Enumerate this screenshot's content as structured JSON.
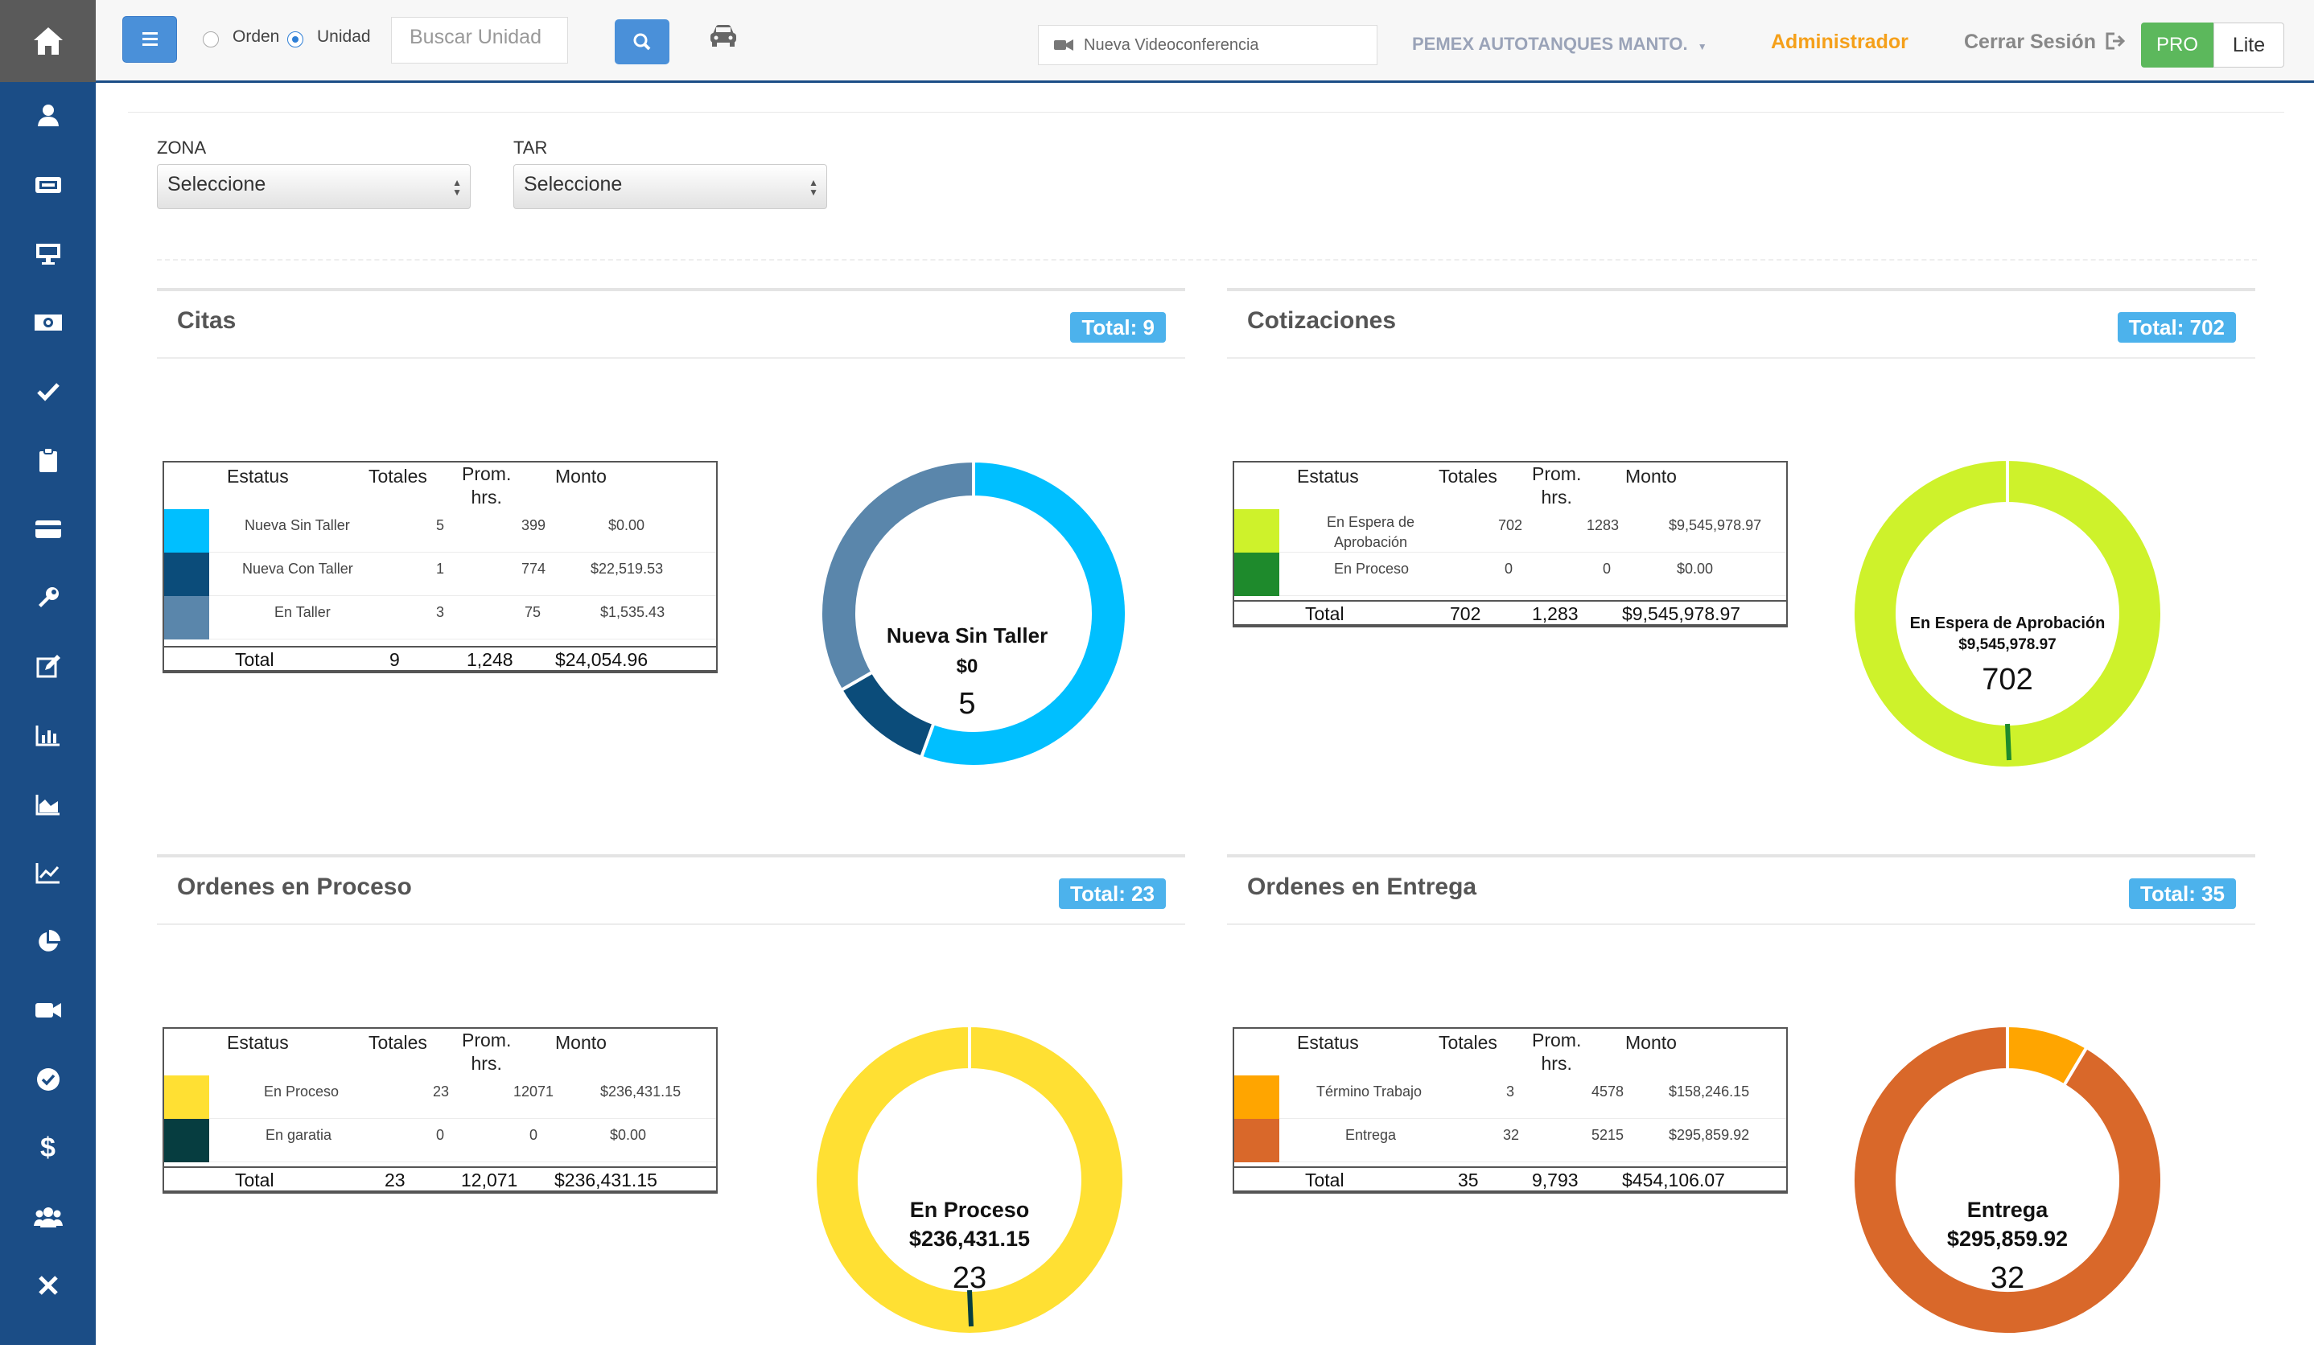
{
  "nav": {
    "items": [
      "home-icon",
      "user-icon",
      "id-card-icon",
      "display-icon",
      "money-icon",
      "check-icon",
      "clipboard-icon",
      "credit-card-icon",
      "wrench-icon",
      "edit-icon",
      "bar-chart-icon",
      "area-chart-icon",
      "line-chart-icon",
      "pie-chart-icon",
      "video-icon",
      "check-circle-icon",
      "dollar-icon",
      "users-icon",
      "close-icon"
    ]
  },
  "topbar": {
    "radio_orden": "Orden",
    "radio_unidad": "Unidad",
    "search_placeholder": "Buscar Unidad",
    "videoconf": "Nueva Videoconferencia",
    "company": "PEMEX AUTOTANQUES MANTO.",
    "admin": "Administrador",
    "logout": "Cerrar Sesión",
    "pro": "PRO",
    "lite": "Lite"
  },
  "filters": {
    "zona_label": "ZONA",
    "zona_value": "Seleccione",
    "tar_label": "TAR",
    "tar_value": "Seleccione"
  },
  "headers": {
    "estatus": "Estatus",
    "totales": "Totales",
    "prom1": "Prom.",
    "prom2": "hrs.",
    "monto": "Monto",
    "total": "Total"
  },
  "panels": {
    "citas": {
      "title": "Citas",
      "badge": "Total: 9",
      "rows": [
        {
          "status": "Nueva Sin Taller",
          "status2": "",
          "totales": "5",
          "prom": "399",
          "monto": "$0.00",
          "color": "#00bfff"
        },
        {
          "status": "Nueva Con Taller",
          "status2": "",
          "totales": "1",
          "prom": "774",
          "monto": "$22,519.53",
          "color": "#0b4c7a"
        },
        {
          "status": "En Taller",
          "status2": "",
          "totales": "3",
          "prom": "75",
          "monto": "$1,535.43",
          "color": "#5a86ab"
        }
      ],
      "total": {
        "totales": "9",
        "prom": "1,248",
        "monto": "$24,054.96"
      },
      "center": {
        "line1": "Nueva Sin Taller",
        "line2": "$0",
        "line3": "5"
      }
    },
    "cotizaciones": {
      "title": "Cotizaciones",
      "badge": "Total: 702",
      "rows": [
        {
          "status": "En Espera de",
          "status2": "Aprobación",
          "totales": "702",
          "prom": "1283",
          "monto": "$9,545,978.97",
          "color": "#cef22b"
        },
        {
          "status": "En Proceso",
          "status2": "",
          "totales": "0",
          "prom": "0",
          "monto": "$0.00",
          "color": "#1e8a2c"
        }
      ],
      "total": {
        "totales": "702",
        "prom": "1,283",
        "monto": "$9,545,978.97"
      },
      "center": {
        "line1": "En Espera de Aprobación",
        "line2": "$9,545,978.97",
        "line3": "702"
      }
    },
    "proceso": {
      "title": "Ordenes en Proceso",
      "badge": "Total: 23",
      "rows": [
        {
          "status": "En Proceso",
          "status2": "",
          "totales": "23",
          "prom": "12071",
          "monto": "$236,431.15",
          "color": "#ffe033"
        },
        {
          "status": "En garatia",
          "status2": "",
          "totales": "0",
          "prom": "0",
          "monto": "$0.00",
          "color": "#063d40"
        }
      ],
      "total": {
        "totales": "23",
        "prom": "12,071",
        "monto": "$236,431.15"
      },
      "center": {
        "line1": "En Proceso",
        "line2": "$236,431.15",
        "line3": "23"
      }
    },
    "entrega": {
      "title": "Ordenes en Entrega",
      "badge": "Total: 35",
      "rows": [
        {
          "status": "Término Trabajo",
          "status2": "",
          "totales": "3",
          "prom": "4578",
          "monto": "$158,246.15",
          "color": "#ffa500"
        },
        {
          "status": "Entrega",
          "status2": "",
          "totales": "32",
          "prom": "5215",
          "monto": "$295,859.92",
          "color": "#d9682a"
        }
      ],
      "total": {
        "totales": "35",
        "prom": "9,793",
        "monto": "$454,106.07"
      },
      "center": {
        "line1": "Entrega",
        "line2": "$295,859.92",
        "line3": "32"
      }
    }
  },
  "chart_data": [
    {
      "type": "pie",
      "variant": "donut",
      "series": [
        {
          "name": "Nueva Sin Taller",
          "value": 5,
          "color": "#00bfff"
        },
        {
          "name": "Nueva Con Taller",
          "value": 1,
          "color": "#0b4c7a"
        },
        {
          "name": "En Taller",
          "value": 3,
          "color": "#5a86ab"
        }
      ],
      "highlight": "Nueva Sin Taller"
    },
    {
      "type": "pie",
      "variant": "donut",
      "series": [
        {
          "name": "En Espera de Aprobación",
          "value": 702,
          "color": "#cef22b"
        },
        {
          "name": "En Proceso",
          "value": 0,
          "color": "#1e8a2c"
        }
      ],
      "highlight": "En Espera de Aprobación"
    },
    {
      "type": "pie",
      "variant": "donut",
      "series": [
        {
          "name": "En Proceso",
          "value": 23,
          "color": "#ffe033"
        },
        {
          "name": "En garatia",
          "value": 0,
          "color": "#063d40"
        }
      ],
      "highlight": "En Proceso"
    },
    {
      "type": "pie",
      "variant": "donut",
      "series": [
        {
          "name": "Término Trabajo",
          "value": 3,
          "color": "#ffa500"
        },
        {
          "name": "Entrega",
          "value": 32,
          "color": "#d9682a"
        }
      ],
      "highlight": "Entrega"
    }
  ]
}
